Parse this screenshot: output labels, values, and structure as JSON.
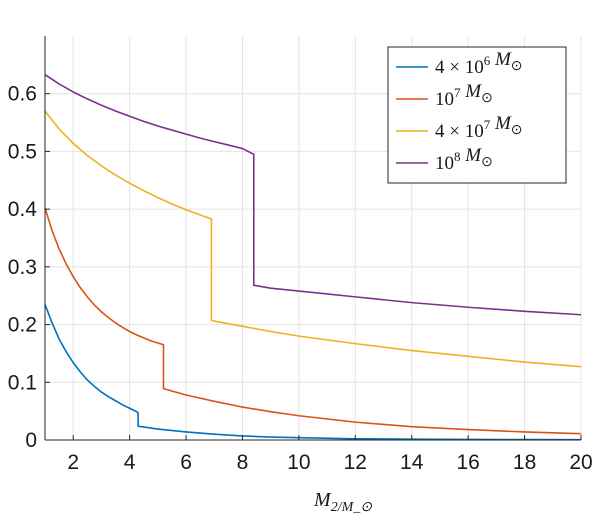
{
  "chart_data": {
    "type": "line",
    "title": "",
    "xlabel": "M_2/M_⊙",
    "ylabel": "",
    "xlim": [
      1,
      20
    ],
    "ylim": [
      0,
      0.7
    ],
    "xticks": [
      2,
      4,
      6,
      8,
      10,
      12,
      14,
      16,
      18,
      20
    ],
    "yticks": [
      0,
      0.1,
      0.2,
      0.3,
      0.4,
      0.5,
      0.6
    ],
    "grid": true,
    "legend_position": "top-right",
    "series": [
      {
        "name": "4 × 10^6 M_⊙",
        "color": "#0072BD",
        "segments": [
          {
            "x": [
              1.0,
              1.25,
              1.5,
              1.75,
              2.0,
              2.25,
              2.5,
              2.75,
              3.0,
              3.25,
              3.5,
              3.75,
              4.0,
              4.25,
              4.3
            ],
            "y": [
              0.235,
              0.203,
              0.175,
              0.153,
              0.134,
              0.118,
              0.104,
              0.093,
              0.083,
              0.075,
              0.068,
              0.061,
              0.055,
              0.049,
              0.047
            ]
          },
          {
            "x": [
              4.3,
              5.0,
              6.0,
              7.0,
              8.0,
              9.0,
              10.0,
              12.0,
              14.0,
              16.0,
              18.0,
              20.0
            ],
            "y": [
              0.024,
              0.019,
              0.014,
              0.01,
              0.007,
              0.005,
              0.004,
              0.002,
              0.0015,
              0.001,
              0.0008,
              0.0005
            ]
          }
        ]
      },
      {
        "name": "10^7 M_⊙",
        "color": "#D95319",
        "segments": [
          {
            "x": [
              1.0,
              1.25,
              1.5,
              1.75,
              2.0,
              2.25,
              2.5,
              2.75,
              3.0,
              3.25,
              3.5,
              3.75,
              4.0,
              4.25,
              4.5,
              4.75,
              5.0,
              5.2
            ],
            "y": [
              0.402,
              0.363,
              0.331,
              0.305,
              0.283,
              0.264,
              0.248,
              0.234,
              0.222,
              0.212,
              0.203,
              0.195,
              0.188,
              0.182,
              0.177,
              0.172,
              0.168,
              0.165
            ]
          },
          {
            "x": [
              5.2,
              6.0,
              7.0,
              8.0,
              9.0,
              10.0,
              12.0,
              14.0,
              16.0,
              18.0,
              20.0
            ],
            "y": [
              0.089,
              0.078,
              0.067,
              0.057,
              0.049,
              0.042,
              0.031,
              0.023,
              0.018,
              0.014,
              0.011
            ]
          }
        ]
      },
      {
        "name": "4 × 10^7 M_⊙",
        "color": "#EDB120",
        "segments": [
          {
            "x": [
              1.0,
              1.5,
              2.0,
              2.5,
              3.0,
              3.5,
              4.0,
              4.5,
              5.0,
              5.5,
              6.0,
              6.5,
              6.9
            ],
            "y": [
              0.57,
              0.539,
              0.514,
              0.493,
              0.475,
              0.459,
              0.445,
              0.432,
              0.42,
              0.409,
              0.399,
              0.39,
              0.383
            ]
          },
          {
            "x": [
              6.9,
              8.0,
              9.0,
              10.0,
              12.0,
              14.0,
              16.0,
              18.0,
              20.0
            ],
            "y": [
              0.207,
              0.197,
              0.188,
              0.18,
              0.167,
              0.155,
              0.145,
              0.135,
              0.127
            ]
          }
        ]
      },
      {
        "name": "10^8 M_⊙",
        "color": "#7E2F8E",
        "segments": [
          {
            "x": [
              1.0,
              1.5,
              2.0,
              2.5,
              3.0,
              3.5,
              4.0,
              4.5,
              5.0,
              5.5,
              6.0,
              6.5,
              7.0,
              7.5,
              8.0,
              8.4
            ],
            "y": [
              0.633,
              0.617,
              0.603,
              0.591,
              0.58,
              0.57,
              0.561,
              0.552,
              0.544,
              0.537,
              0.53,
              0.523,
              0.517,
              0.511,
              0.505,
              0.495
            ]
          },
          {
            "x": [
              8.4,
              9.0,
              10.0,
              11.0,
              12.0,
              14.0,
              16.0,
              18.0,
              20.0
            ],
            "y": [
              0.268,
              0.263,
              0.258,
              0.253,
              0.248,
              0.238,
              0.23,
              0.223,
              0.217
            ]
          }
        ]
      }
    ]
  }
}
